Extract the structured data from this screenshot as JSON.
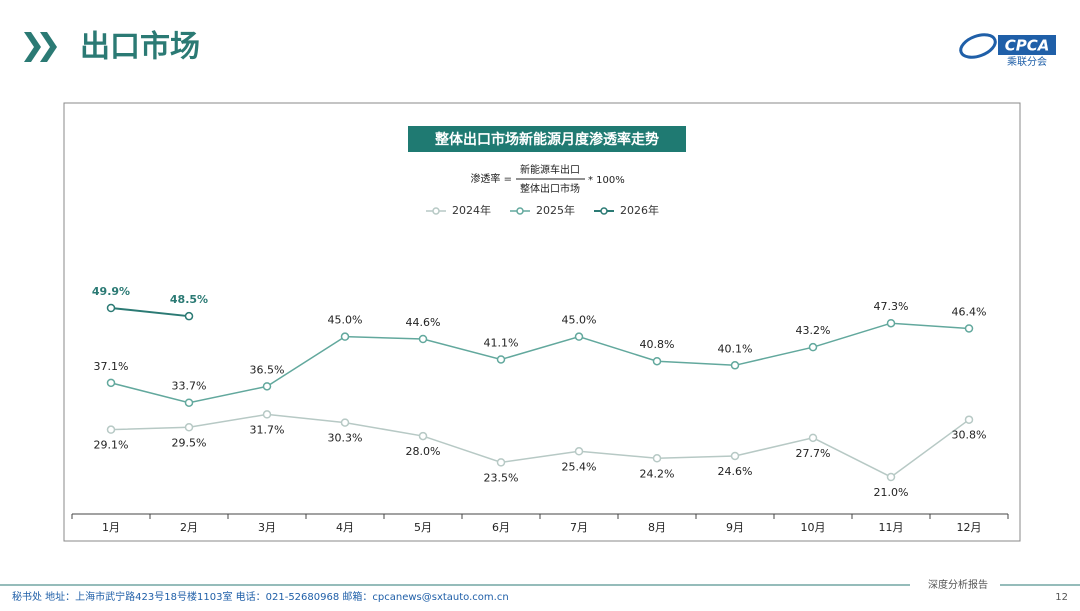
{
  "header": {
    "title": "出口市场",
    "logo_text": "CPCA",
    "logo_sub": "乘联分会"
  },
  "chart_data": {
    "type": "line",
    "title": "整体出口市场新能源月度渗透率走势",
    "formula": {
      "lhs": "渗透率 =",
      "numerator": "新能源车出口",
      "denominator": "整体出口市场",
      "rhs": "* 100%"
    },
    "categories": [
      "1月",
      "2月",
      "3月",
      "4月",
      "5月",
      "6月",
      "7月",
      "8月",
      "9月",
      "10月",
      "11月",
      "12月"
    ],
    "series": [
      {
        "name": "2024年",
        "color": "#b7c9c5",
        "values": [
          29.1,
          29.5,
          31.7,
          30.3,
          28.0,
          23.5,
          25.4,
          24.2,
          24.6,
          27.7,
          21.0,
          30.8
        ],
        "value_labels": [
          "29.1%",
          "29.5%",
          "31.7%",
          "30.3%",
          "28.0%",
          "23.5%",
          "25.4%",
          "24.2%",
          "24.6%",
          "27.7%",
          "21.0%",
          "30.8%"
        ]
      },
      {
        "name": "2025年",
        "color": "#62a89d",
        "values": [
          37.1,
          33.7,
          36.5,
          45.0,
          44.6,
          41.1,
          45.0,
          40.8,
          40.1,
          43.2,
          47.3,
          46.4
        ],
        "value_labels": [
          "37.1%",
          "33.7%",
          "36.5%",
          "45.0%",
          "44.6%",
          "41.1%",
          "45.0%",
          "40.8%",
          "40.1%",
          "43.2%",
          "47.3%",
          "46.4%"
        ]
      },
      {
        "name": "2026年",
        "color": "#2b7a74",
        "values": [
          49.9,
          48.5,
          null,
          null,
          null,
          null,
          null,
          null,
          null,
          null,
          null,
          null
        ],
        "value_labels": [
          "49.9%",
          "48.5%",
          null,
          null,
          null,
          null,
          null,
          null,
          null,
          null,
          null,
          null
        ]
      }
    ],
    "grid": false,
    "legend": "top"
  },
  "footer": {
    "contact": "秘书处   地址：上海市武宁路423号18号楼1103室   电话：021-52680968    邮箱：cpcanews@sxtauto.com.cn",
    "report": "深度分析报告",
    "page": "12"
  }
}
